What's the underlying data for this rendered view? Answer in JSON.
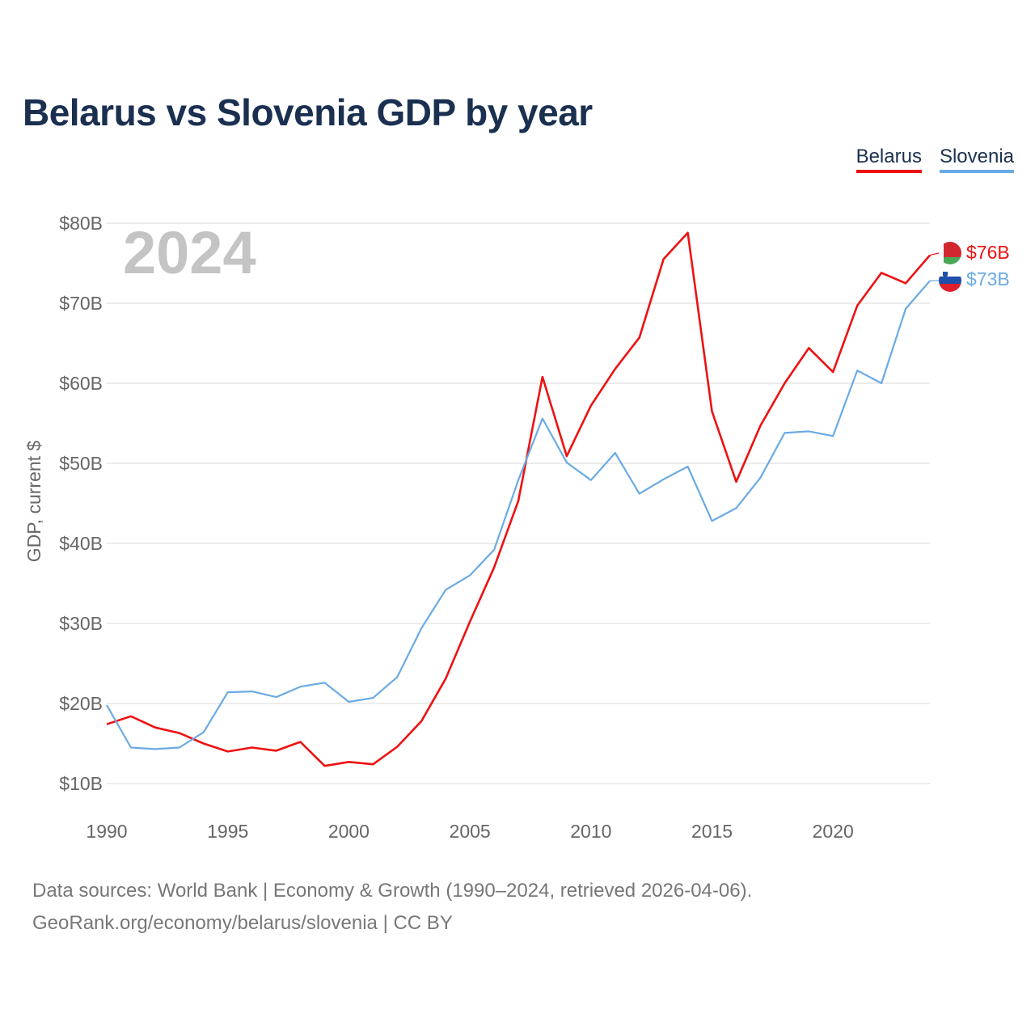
{
  "title": "Belarus vs Slovenia GDP by year",
  "legend": {
    "belarus": "Belarus",
    "slovenia": "Slovenia"
  },
  "colors": {
    "belarus": "#ee1111",
    "slovenia": "#6aaae4",
    "title": "#1b3050"
  },
  "chart_data": {
    "type": "line",
    "title": "Belarus vs Slovenia GDP by year",
    "ylabel": "GDP, current $",
    "xlabel": "",
    "year_overlay": "2024",
    "ylim": [
      10,
      80
    ],
    "xlim": [
      1990,
      2024
    ],
    "yticks": [
      {
        "value": 10,
        "label": "$10B"
      },
      {
        "value": 20,
        "label": "$20B"
      },
      {
        "value": 30,
        "label": "$30B"
      },
      {
        "value": 40,
        "label": "$40B"
      },
      {
        "value": 50,
        "label": "$50B"
      },
      {
        "value": 60,
        "label": "$60B"
      },
      {
        "value": 70,
        "label": "$70B"
      },
      {
        "value": 80,
        "label": "$80B"
      }
    ],
    "xticks": [
      {
        "value": 1990,
        "label": "1990"
      },
      {
        "value": 1995,
        "label": "1995"
      },
      {
        "value": 2000,
        "label": "2000"
      },
      {
        "value": 2005,
        "label": "2005"
      },
      {
        "value": 2010,
        "label": "2010"
      },
      {
        "value": 2015,
        "label": "2015"
      },
      {
        "value": 2020,
        "label": "2020"
      }
    ],
    "x": [
      1990,
      1991,
      1992,
      1993,
      1994,
      1995,
      1996,
      1997,
      1998,
      1999,
      2000,
      2001,
      2002,
      2003,
      2004,
      2005,
      2006,
      2007,
      2008,
      2009,
      2010,
      2011,
      2012,
      2013,
      2014,
      2015,
      2016,
      2017,
      2018,
      2019,
      2020,
      2021,
      2022,
      2023,
      2024
    ],
    "series": [
      {
        "name": "Belarus",
        "color": "#ee1111",
        "end_label": "$76B",
        "values": [
          17.4,
          18.4,
          17.0,
          16.3,
          15.0,
          14.0,
          14.5,
          14.1,
          15.2,
          12.2,
          12.7,
          12.4,
          14.6,
          17.8,
          23.1,
          30.2,
          37.0,
          45.3,
          60.8,
          50.9,
          57.2,
          61.8,
          65.7,
          75.5,
          78.8,
          56.5,
          47.7,
          54.7,
          60.0,
          64.4,
          61.4,
          69.7,
          73.8,
          72.5,
          76.0
        ]
      },
      {
        "name": "Slovenia",
        "color": "#6aaae4",
        "end_label": "$73B",
        "values": [
          19.8,
          14.5,
          14.3,
          14.5,
          16.4,
          21.4,
          21.5,
          20.8,
          22.1,
          22.6,
          20.2,
          20.7,
          23.3,
          29.4,
          34.2,
          36.0,
          39.2,
          47.9,
          55.6,
          50.1,
          47.9,
          51.3,
          46.2,
          48.0,
          49.6,
          42.8,
          44.4,
          48.2,
          53.8,
          54.0,
          53.4,
          61.6,
          60.0,
          69.3,
          72.8
        ]
      }
    ]
  },
  "footer": {
    "line1": "Data sources: World Bank | Economy & Growth (1990–2024, retrieved 2026-04-06).",
    "line2": "GeoRank.org/economy/belarus/slovenia | CC BY"
  }
}
